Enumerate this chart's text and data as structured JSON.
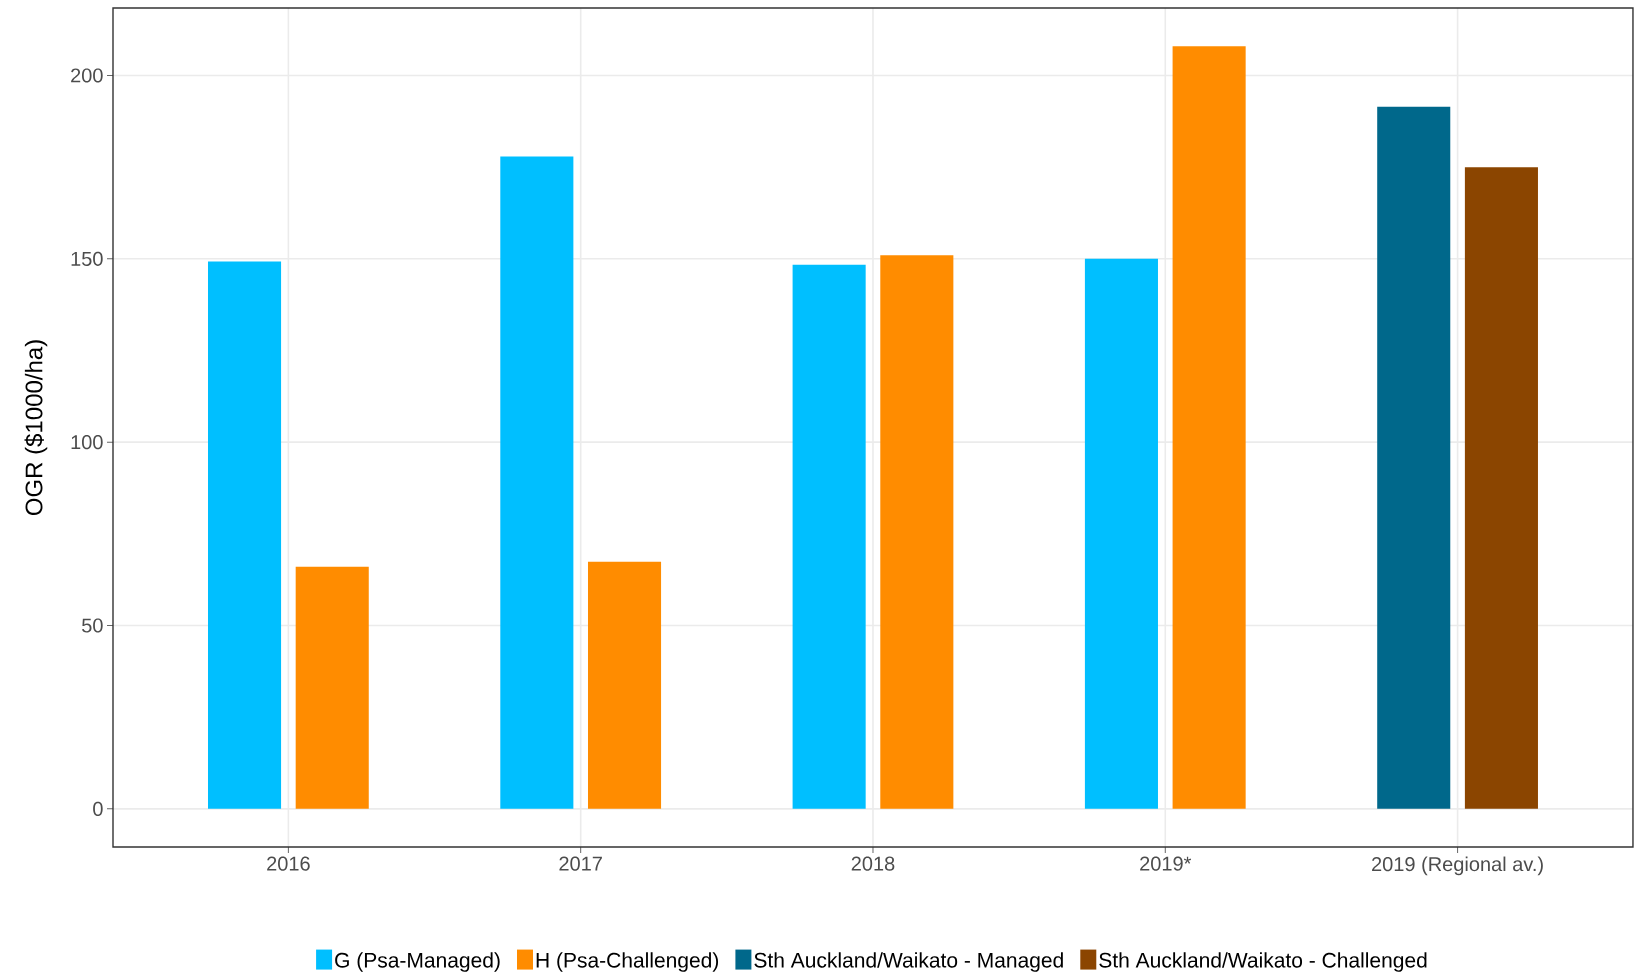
{
  "chart_data": {
    "type": "bar",
    "ylabel": "OGR ($1000/ha)",
    "categories": [
      "2016",
      "2017",
      "2018",
      "2019*",
      "2019 (Regional av.)"
    ],
    "series": [
      {
        "name": "G (Psa-Managed)",
        "color": "#00bfff",
        "values": [
          149.3,
          177.9,
          148.4,
          150,
          null
        ]
      },
      {
        "name": "H (Psa-Challenged)",
        "color": "#ff8c00",
        "values": [
          66,
          67.4,
          151,
          208,
          null
        ]
      },
      {
        "name": "Sth Auckland/Waikato - Managed",
        "color": "#00688b",
        "values": [
          null,
          null,
          null,
          null,
          191.5
        ]
      },
      {
        "name": "Sth Auckland/Waikato - Challenged",
        "color": "#8b4500",
        "values": [
          null,
          null,
          null,
          null,
          175
        ]
      }
    ],
    "ylim": [
      -10.4,
      218.4
    ],
    "yticks": [
      0,
      50,
      100,
      150,
      200
    ],
    "grid": true,
    "legend": "bottom"
  }
}
